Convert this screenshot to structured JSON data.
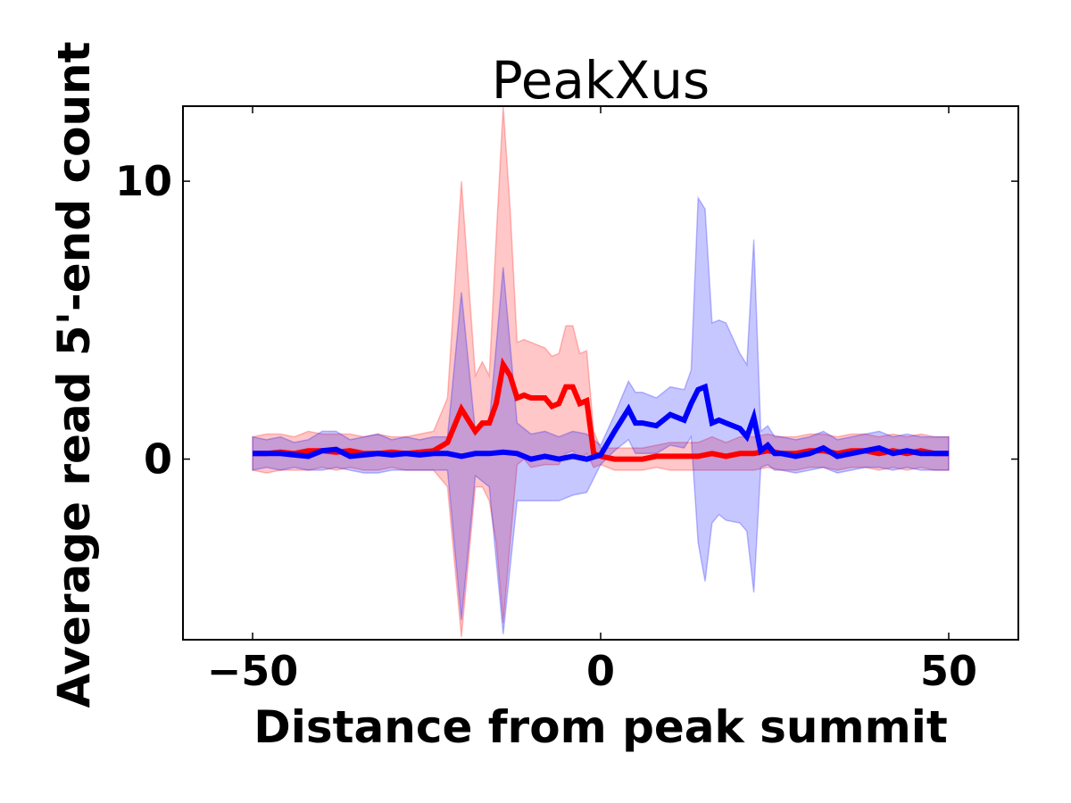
{
  "chart_data": {
    "type": "line",
    "title": "PeakXus",
    "xlabel": "Distance from peak summit",
    "ylabel": "Average read 5'-end count",
    "xlim": [
      -60,
      60
    ],
    "ylim": [
      -6.5,
      12.7
    ],
    "xticks": [
      -50,
      0,
      50
    ],
    "xtick_labels": [
      "−50",
      "0",
      "50"
    ],
    "yticks": [
      0,
      10
    ],
    "ytick_labels": [
      "0",
      "10"
    ],
    "grid": false,
    "legend": "none",
    "series": [
      {
        "color": "#ff0000",
        "band_color": "#ff0000",
        "x": [
          -50,
          -48,
          -46,
          -44,
          -42,
          -40,
          -38,
          -36,
          -34,
          -32,
          -30,
          -28,
          -26,
          -24,
          -22,
          -20,
          -18,
          -17,
          -16,
          -15,
          -14,
          -13,
          -12,
          -11,
          -10,
          -8,
          -7,
          -6,
          -5,
          -4,
          -3,
          -2,
          -1,
          0,
          2,
          4,
          6,
          8,
          10,
          12,
          14,
          16,
          18,
          20,
          22,
          24,
          26,
          28,
          30,
          32,
          34,
          36,
          38,
          40,
          42,
          44,
          46,
          48,
          50
        ],
        "y": [
          0.2,
          0.2,
          0.25,
          0.2,
          0.3,
          0.3,
          0.25,
          0.3,
          0.2,
          0.2,
          0.25,
          0.2,
          0.25,
          0.3,
          0.6,
          1.8,
          1.0,
          1.3,
          1.3,
          2.0,
          3.4,
          3.0,
          2.2,
          2.3,
          2.2,
          2.2,
          1.9,
          2.0,
          2.6,
          2.6,
          2.0,
          2.1,
          0.2,
          0.1,
          0.0,
          0.0,
          0.0,
          0.1,
          0.1,
          0.1,
          0.1,
          0.2,
          0.1,
          0.2,
          0.2,
          0.3,
          0.2,
          0.2,
          0.3,
          0.3,
          0.2,
          0.3,
          0.3,
          0.2,
          0.3,
          0.2,
          0.3,
          0.2,
          0.2
        ],
        "upper": [
          0.8,
          0.9,
          0.9,
          0.8,
          1.0,
          0.9,
          0.9,
          0.9,
          0.8,
          0.9,
          0.8,
          0.8,
          0.9,
          1.0,
          2.2,
          10.0,
          3.0,
          3.5,
          3.0,
          8.0,
          12.7,
          9.0,
          4.2,
          4.3,
          4.2,
          4.0,
          3.7,
          3.8,
          4.8,
          4.8,
          3.8,
          3.9,
          1.0,
          0.4,
          0.4,
          0.4,
          0.4,
          0.5,
          0.6,
          0.6,
          0.6,
          0.8,
          0.6,
          0.8,
          0.8,
          0.9,
          0.8,
          0.8,
          0.9,
          0.9,
          0.8,
          0.9,
          0.9,
          0.8,
          0.9,
          0.8,
          0.9,
          0.8,
          0.8
        ],
        "lower": [
          -0.4,
          -0.5,
          -0.4,
          -0.4,
          -0.4,
          -0.3,
          -0.4,
          -0.3,
          -0.4,
          -0.4,
          -0.3,
          -0.4,
          -0.4,
          -0.4,
          -1.0,
          -6.4,
          -1.0,
          -1.0,
          -1.5,
          -3.0,
          -5.9,
          -3.0,
          -0.2,
          0.0,
          -0.3,
          -0.2,
          -0.2,
          -0.2,
          0.2,
          0.3,
          0.0,
          0.2,
          -0.3,
          -0.2,
          -0.4,
          -0.4,
          -0.4,
          -0.3,
          -0.4,
          -0.4,
          -0.4,
          -0.4,
          -0.4,
          -0.4,
          -0.4,
          -0.3,
          -0.4,
          -0.4,
          -0.3,
          -0.3,
          -0.4,
          -0.3,
          -0.3,
          -0.4,
          -0.3,
          -0.4,
          -0.3,
          -0.4,
          -0.4
        ]
      },
      {
        "color": "#0000ff",
        "band_color": "#0000ff",
        "x": [
          -50,
          -48,
          -46,
          -44,
          -42,
          -40,
          -38,
          -36,
          -34,
          -32,
          -30,
          -28,
          -26,
          -24,
          -22,
          -20,
          -18,
          -16,
          -14,
          -12,
          -10,
          -8,
          -6,
          -4,
          -2,
          0,
          2,
          4,
          5,
          6,
          8,
          10,
          12,
          13,
          14,
          15,
          16,
          17,
          18,
          20,
          21,
          22,
          23,
          24,
          25,
          26,
          28,
          30,
          32,
          34,
          36,
          38,
          40,
          42,
          44,
          46,
          48,
          50
        ],
        "y": [
          0.2,
          0.2,
          0.2,
          0.15,
          0.1,
          0.3,
          0.35,
          0.1,
          0.15,
          0.2,
          0.15,
          0.2,
          0.15,
          0.2,
          0.2,
          0.1,
          0.2,
          0.2,
          0.25,
          0.2,
          0.0,
          0.1,
          0.0,
          0.1,
          0.0,
          0.15,
          1.0,
          1.8,
          1.3,
          1.3,
          1.2,
          1.6,
          1.4,
          2.0,
          2.5,
          2.6,
          1.3,
          1.4,
          1.3,
          1.1,
          0.8,
          1.5,
          0.3,
          0.5,
          0.2,
          0.2,
          0.1,
          0.2,
          0.4,
          0.1,
          0.2,
          0.3,
          0.4,
          0.2,
          0.3,
          0.2,
          0.2,
          0.2
        ],
        "upper": [
          0.8,
          0.7,
          0.8,
          0.6,
          0.7,
          1.0,
          1.0,
          0.7,
          0.8,
          0.9,
          0.7,
          0.8,
          0.7,
          0.8,
          0.8,
          6.0,
          1.0,
          1.3,
          6.9,
          1.3,
          0.9,
          1.0,
          0.8,
          1.0,
          0.9,
          0.5,
          1.6,
          2.8,
          2.4,
          2.4,
          2.2,
          2.6,
          2.5,
          3.2,
          9.4,
          9.0,
          4.9,
          5.0,
          4.9,
          3.8,
          3.4,
          7.9,
          1.0,
          1.2,
          0.8,
          0.8,
          0.7,
          0.8,
          1.0,
          0.7,
          0.8,
          0.9,
          1.0,
          0.8,
          0.9,
          0.8,
          0.8,
          0.8
        ],
        "lower": [
          -0.4,
          -0.3,
          -0.4,
          -0.3,
          -0.4,
          -0.4,
          -0.3,
          -0.4,
          -0.5,
          -0.5,
          -0.4,
          -0.4,
          -0.4,
          -0.4,
          -0.4,
          -5.8,
          -0.6,
          -1.0,
          -6.3,
          -1.5,
          -1.5,
          -1.5,
          -1.5,
          -1.3,
          -1.2,
          -0.2,
          0.3,
          0.7,
          0.2,
          0.2,
          0.2,
          0.5,
          0.4,
          0.8,
          -3.0,
          -4.4,
          -2.3,
          -2.0,
          -2.2,
          -2.3,
          -2.6,
          -4.8,
          -0.3,
          -0.2,
          -0.4,
          -0.4,
          -0.5,
          -0.4,
          -0.3,
          -0.5,
          -0.4,
          -0.3,
          -0.3,
          -0.4,
          -0.3,
          -0.4,
          -0.4,
          -0.4
        ]
      }
    ]
  }
}
